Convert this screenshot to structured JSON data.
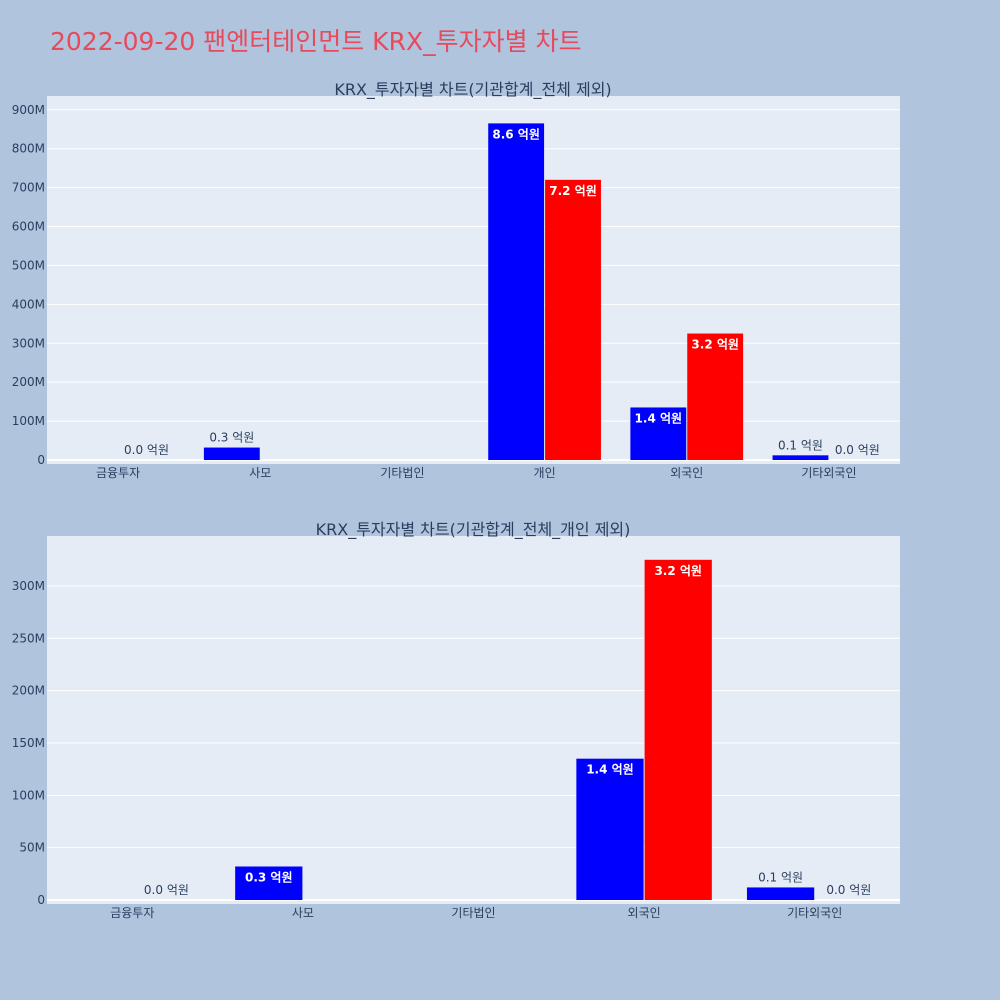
{
  "title": "2022-09-20 팬엔터테인먼트 KRX_투자자별 차트",
  "colors": {
    "buy": "#0000ff",
    "sell": "#ff0000",
    "plot_bg": "#e5ecf6",
    "page_bg": "#b0c4de",
    "title": "#e8495b"
  },
  "chart_data": [
    {
      "type": "bar",
      "title": "KRX_투자자별 차트(기관합계_전체 제외)",
      "categories": [
        "금융투자",
        "사모",
        "기타법인",
        "개인",
        "외국인",
        "기타외국인"
      ],
      "series": [
        {
          "color": "#0000ff",
          "values": [
            0,
            32000000,
            0,
            865000000,
            135000000,
            12000000
          ],
          "labels": [
            "",
            "0.3 억원",
            "",
            "8.6 억원",
            "1.4 억원",
            "0.1 억원"
          ]
        },
        {
          "color": "#ff0000",
          "values": [
            0,
            0,
            0,
            720000000,
            325000000,
            0
          ],
          "labels": [
            "0.0 억원",
            "",
            "",
            "7.2 억원",
            "3.2 억원",
            "0.0 억원"
          ]
        }
      ],
      "ylim": [
        0,
        920000000
      ],
      "yticks": [
        0,
        100000000,
        200000000,
        300000000,
        400000000,
        500000000,
        600000000,
        700000000,
        800000000,
        900000000
      ],
      "ytick_labels": [
        "0",
        "100M",
        "200M",
        "300M",
        "400M",
        "500M",
        "600M",
        "700M",
        "800M",
        "900M"
      ],
      "xlabel": "",
      "ylabel": "",
      "grid": true
    },
    {
      "type": "bar",
      "title": "KRX_투자자별 차트(기관합계_전체_개인 제외)",
      "categories": [
        "금융투자",
        "사모",
        "기타법인",
        "외국인",
        "기타외국인"
      ],
      "series": [
        {
          "color": "#0000ff",
          "values": [
            0,
            32000000,
            0,
            135000000,
            12000000
          ],
          "labels": [
            "",
            "0.3 억원",
            "",
            "1.4 억원",
            "0.1 억원"
          ]
        },
        {
          "color": "#ff0000",
          "values": [
            0,
            0,
            0,
            325000000,
            0
          ],
          "labels": [
            "0.0 억원",
            "",
            "",
            "3.2 억원",
            "0.0 억원"
          ]
        }
      ],
      "ylim": [
        0,
        342000000
      ],
      "yticks": [
        0,
        50000000,
        100000000,
        150000000,
        200000000,
        250000000,
        300000000
      ],
      "ytick_labels": [
        "0",
        "50M",
        "100M",
        "150M",
        "200M",
        "250M",
        "300M"
      ],
      "xlabel": "",
      "ylabel": "",
      "grid": true
    }
  ]
}
